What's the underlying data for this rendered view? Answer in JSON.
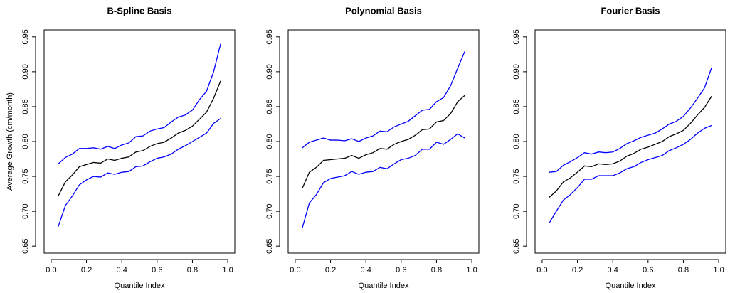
{
  "chart_data": [
    {
      "type": "line",
      "title": "B-Spline Basis",
      "xlabel": "Quantile Index",
      "ylabel": "Average Growth (cm/month)",
      "x": [
        0.04,
        0.08,
        0.12,
        0.16,
        0.2,
        0.24,
        0.28,
        0.32,
        0.36,
        0.4,
        0.44,
        0.48,
        0.52,
        0.56,
        0.6,
        0.64,
        0.68,
        0.72,
        0.76,
        0.8,
        0.84,
        0.88,
        0.92,
        0.96
      ],
      "series": [
        {
          "color": "#0000ff",
          "values": [
            0.768,
            0.777,
            0.782,
            0.79,
            0.79,
            0.791,
            0.789,
            0.793,
            0.79,
            0.795,
            0.798,
            0.807,
            0.808,
            0.815,
            0.818,
            0.82,
            0.828,
            0.835,
            0.838,
            0.845,
            0.86,
            0.872,
            0.9,
            0.94
          ]
        },
        {
          "color": "#000000",
          "values": [
            0.722,
            0.742,
            0.752,
            0.764,
            0.767,
            0.77,
            0.769,
            0.775,
            0.773,
            0.776,
            0.778,
            0.785,
            0.787,
            0.793,
            0.797,
            0.799,
            0.805,
            0.812,
            0.816,
            0.822,
            0.832,
            0.842,
            0.862,
            0.887
          ]
        },
        {
          "color": "#0000ff",
          "values": [
            0.678,
            0.708,
            0.722,
            0.738,
            0.745,
            0.75,
            0.749,
            0.755,
            0.753,
            0.756,
            0.757,
            0.764,
            0.765,
            0.771,
            0.776,
            0.778,
            0.782,
            0.789,
            0.794,
            0.8,
            0.806,
            0.812,
            0.826,
            0.833
          ]
        }
      ],
      "xlim": [
        -0.04,
        1.04
      ],
      "ylim": [
        0.64,
        0.96
      ],
      "xticks": [
        {
          "value": 0,
          "label": "0.0"
        },
        0.2,
        0.4,
        0.6,
        0.8,
        {
          "value": 1,
          "label": "1.0"
        }
      ],
      "yticks": [
        0.65,
        {
          "value": 0.7,
          "label": "0.70"
        },
        0.75,
        {
          "value": 0.8,
          "label": "0.80"
        },
        0.85,
        {
          "value": 0.9,
          "label": "0.90"
        },
        0.95
      ]
    },
    {
      "type": "line",
      "title": "Polynomial Basis",
      "xlabel": "Quantile Index",
      "x": [
        0.04,
        0.08,
        0.12,
        0.16,
        0.2,
        0.24,
        0.28,
        0.32,
        0.36,
        0.4,
        0.44,
        0.48,
        0.52,
        0.56,
        0.6,
        0.64,
        0.68,
        0.72,
        0.76,
        0.8,
        0.84,
        0.88,
        0.92,
        0.96
      ],
      "series": [
        {
          "color": "#0000ff",
          "values": [
            0.791,
            0.799,
            0.802,
            0.805,
            0.802,
            0.802,
            0.801,
            0.804,
            0.8,
            0.805,
            0.808,
            0.815,
            0.814,
            0.821,
            0.825,
            0.829,
            0.837,
            0.845,
            0.846,
            0.857,
            0.863,
            0.88,
            0.905,
            0.929
          ]
        },
        {
          "color": "#000000",
          "values": [
            0.733,
            0.756,
            0.763,
            0.773,
            0.774,
            0.775,
            0.776,
            0.78,
            0.776,
            0.781,
            0.784,
            0.79,
            0.789,
            0.796,
            0.8,
            0.803,
            0.809,
            0.817,
            0.818,
            0.828,
            0.83,
            0.84,
            0.857,
            0.866
          ]
        },
        {
          "color": "#0000ff",
          "values": [
            0.676,
            0.712,
            0.724,
            0.741,
            0.747,
            0.749,
            0.751,
            0.757,
            0.753,
            0.756,
            0.757,
            0.763,
            0.761,
            0.768,
            0.774,
            0.776,
            0.78,
            0.789,
            0.789,
            0.799,
            0.796,
            0.803,
            0.811,
            0.805
          ]
        }
      ],
      "xlim": [
        -0.04,
        1.04
      ],
      "ylim": [
        0.64,
        0.96
      ],
      "xticks": [
        {
          "value": 0,
          "label": "0.0"
        },
        0.2,
        0.4,
        0.6,
        0.8,
        {
          "value": 1,
          "label": "1.0"
        }
      ],
      "yticks": [
        0.65,
        {
          "value": 0.7,
          "label": "0.70"
        },
        0.75,
        {
          "value": 0.8,
          "label": "0.80"
        },
        0.85,
        {
          "value": 0.9,
          "label": "0.90"
        },
        0.95
      ]
    },
    {
      "type": "line",
      "title": "Fourier Basis",
      "xlabel": "Quantile Index",
      "x": [
        0.04,
        0.08,
        0.12,
        0.16,
        0.2,
        0.24,
        0.28,
        0.32,
        0.36,
        0.4,
        0.44,
        0.48,
        0.52,
        0.56,
        0.6,
        0.64,
        0.68,
        0.72,
        0.76,
        0.8,
        0.84,
        0.88,
        0.92,
        0.96
      ],
      "series": [
        {
          "color": "#0000ff",
          "values": [
            0.756,
            0.757,
            0.766,
            0.771,
            0.777,
            0.784,
            0.782,
            0.785,
            0.784,
            0.785,
            0.79,
            0.797,
            0.801,
            0.806,
            0.809,
            0.812,
            0.818,
            0.825,
            0.829,
            0.836,
            0.848,
            0.862,
            0.877,
            0.906
          ]
        },
        {
          "color": "#000000",
          "values": [
            0.72,
            0.729,
            0.742,
            0.748,
            0.756,
            0.765,
            0.764,
            0.768,
            0.767,
            0.768,
            0.772,
            0.779,
            0.783,
            0.789,
            0.792,
            0.796,
            0.8,
            0.807,
            0.811,
            0.816,
            0.826,
            0.838,
            0.849,
            0.865
          ]
        },
        {
          "color": "#0000ff",
          "values": [
            0.683,
            0.7,
            0.716,
            0.724,
            0.734,
            0.746,
            0.746,
            0.751,
            0.751,
            0.751,
            0.755,
            0.761,
            0.764,
            0.77,
            0.774,
            0.777,
            0.78,
            0.787,
            0.791,
            0.796,
            0.803,
            0.812,
            0.819,
            0.823
          ]
        }
      ],
      "xlim": [
        -0.04,
        1.04
      ],
      "ylim": [
        0.64,
        0.96
      ],
      "xticks": [
        {
          "value": 0,
          "label": "0.0"
        },
        0.2,
        0.4,
        0.6,
        0.8,
        {
          "value": 1,
          "label": "1.0"
        }
      ],
      "yticks": [
        0.65,
        {
          "value": 0.7,
          "label": "0.70"
        },
        0.75,
        {
          "value": 0.8,
          "label": "0.80"
        },
        0.85,
        {
          "value": 0.9,
          "label": "0.90"
        },
        0.95
      ]
    }
  ]
}
